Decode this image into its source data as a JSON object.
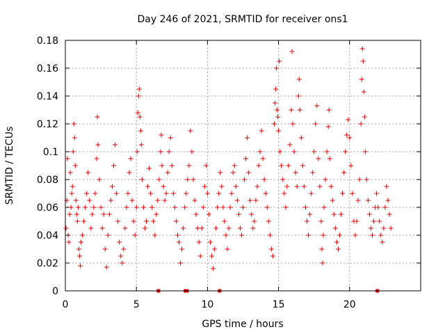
{
  "chart_data": {
    "type": "scatter",
    "title": "Day 246 of 2021, SRMTID for receiver ons1",
    "xlabel": "GPS time / hours",
    "ylabel": "SRMTID / TECUs",
    "xlim": [
      0,
      25
    ],
    "ylim": [
      0,
      0.18
    ],
    "x_ticks": [
      0,
      5,
      10,
      15,
      20
    ],
    "x_tick_labels": [
      "0",
      "5",
      "10",
      "15",
      "20"
    ],
    "y_ticks": [
      0,
      0.02,
      0.04,
      0.06,
      0.08,
      0.1,
      0.12,
      0.14,
      0.16,
      0.18
    ],
    "y_tick_labels": [
      "0",
      "0.02",
      "0.04",
      "0.06",
      "0.08",
      "0.1",
      "0.12",
      "0.14",
      "0.16",
      "0.18"
    ],
    "grid": true,
    "marker": "+",
    "color": "#e00000",
    "series": [
      {
        "name": "SRMTID",
        "points": [
          [
            0.05,
            0.045
          ],
          [
            0.1,
            0.065
          ],
          [
            0.15,
            0.095
          ],
          [
            0.2,
            0.04
          ],
          [
            0.25,
            0.035
          ],
          [
            0.3,
            0.055
          ],
          [
            0.35,
            0.085
          ],
          [
            0.4,
            0.06
          ],
          [
            0.45,
            0.07
          ],
          [
            0.5,
            0.075
          ],
          [
            0.55,
            0.1
          ],
          [
            0.6,
            0.12
          ],
          [
            0.65,
            0.11
          ],
          [
            0.7,
            0.09
          ],
          [
            0.75,
            0.065
          ],
          [
            0.8,
            0.055
          ],
          [
            0.85,
            0.05
          ],
          [
            0.9,
            0.06
          ],
          [
            0.95,
            0.03
          ],
          [
            1.0,
            0.025
          ],
          [
            1.05,
            0.018
          ],
          [
            1.1,
            0.035
          ],
          [
            1.2,
            0.04
          ],
          [
            1.3,
            0.05
          ],
          [
            1.4,
            0.06
          ],
          [
            1.5,
            0.07
          ],
          [
            1.6,
            0.085
          ],
          [
            1.7,
            0.065
          ],
          [
            1.8,
            0.045
          ],
          [
            1.9,
            0.055
          ],
          [
            2.0,
            0.06
          ],
          [
            2.1,
            0.07
          ],
          [
            2.2,
            0.095
          ],
          [
            2.25,
            0.125
          ],
          [
            2.3,
            0.105
          ],
          [
            2.4,
            0.08
          ],
          [
            2.5,
            0.06
          ],
          [
            2.6,
            0.045
          ],
          [
            2.7,
            0.055
          ],
          [
            2.8,
            0.03
          ],
          [
            2.9,
            0.017
          ],
          [
            3.0,
            0.04
          ],
          [
            3.1,
            0.055
          ],
          [
            3.2,
            0.065
          ],
          [
            3.3,
            0.075
          ],
          [
            3.4,
            0.09
          ],
          [
            3.5,
            0.105
          ],
          [
            3.6,
            0.07
          ],
          [
            3.7,
            0.05
          ],
          [
            3.8,
            0.035
          ],
          [
            3.9,
            0.025
          ],
          [
            4.0,
            0.02
          ],
          [
            4.1,
            0.03
          ],
          [
            4.2,
            0.045
          ],
          [
            4.3,
            0.06
          ],
          [
            4.4,
            0.07
          ],
          [
            4.5,
            0.085
          ],
          [
            4.6,
            0.095
          ],
          [
            4.7,
            0.065
          ],
          [
            4.8,
            0.05
          ],
          [
            4.9,
            0.04
          ],
          [
            5.0,
            0.06
          ],
          [
            5.05,
            0.1
          ],
          [
            5.1,
            0.128
          ],
          [
            5.15,
            0.14
          ],
          [
            5.2,
            0.145
          ],
          [
            5.25,
            0.125
          ],
          [
            5.3,
            0.115
          ],
          [
            5.35,
            0.105
          ],
          [
            5.4,
            0.08
          ],
          [
            5.5,
            0.06
          ],
          [
            5.6,
            0.045
          ],
          [
            5.7,
            0.05
          ],
          [
            5.8,
            0.075
          ],
          [
            5.9,
            0.088
          ],
          [
            6.0,
            0.07
          ],
          [
            6.1,
            0.06
          ],
          [
            6.2,
            0.05
          ],
          [
            6.3,
            0.04
          ],
          [
            6.4,
            0.055
          ],
          [
            6.5,
            0.065
          ],
          [
            6.6,
            0.08
          ],
          [
            6.7,
            0.1
          ],
          [
            6.75,
            0.112
          ],
          [
            6.8,
            0.09
          ],
          [
            6.9,
            0.075
          ],
          [
            7.0,
            0.065
          ],
          [
            7.1,
            0.07
          ],
          [
            7.2,
            0.085
          ],
          [
            7.3,
            0.1
          ],
          [
            7.4,
            0.11
          ],
          [
            7.5,
            0.09
          ],
          [
            7.6,
            0.07
          ],
          [
            7.7,
            0.06
          ],
          [
            7.8,
            0.05
          ],
          [
            7.9,
            0.04
          ],
          [
            8.0,
            0.035
          ],
          [
            8.1,
            0.02
          ],
          [
            8.2,
            0.03
          ],
          [
            8.3,
            0.045
          ],
          [
            8.4,
            0.06
          ],
          [
            8.5,
            0.07
          ],
          [
            8.6,
            0.08
          ],
          [
            8.7,
            0.09
          ],
          [
            8.8,
            0.115
          ],
          [
            8.9,
            0.1
          ],
          [
            9.0,
            0.08
          ],
          [
            9.1,
            0.065
          ],
          [
            9.2,
            0.055
          ],
          [
            9.3,
            0.045
          ],
          [
            9.4,
            0.035
          ],
          [
            9.5,
            0.025
          ],
          [
            9.6,
            0.045
          ],
          [
            9.7,
            0.06
          ],
          [
            9.8,
            0.075
          ],
          [
            9.9,
            0.09
          ],
          [
            10.0,
            0.07
          ],
          [
            10.1,
            0.055
          ],
          [
            10.2,
            0.035
          ],
          [
            10.3,
            0.025
          ],
          [
            10.4,
            0.016
          ],
          [
            10.5,
            0.03
          ],
          [
            10.6,
            0.045
          ],
          [
            10.7,
            0.06
          ],
          [
            10.8,
            0.07
          ],
          [
            10.9,
            0.085
          ],
          [
            11.0,
            0.075
          ],
          [
            11.1,
            0.06
          ],
          [
            11.2,
            0.05
          ],
          [
            11.3,
            0.04
          ],
          [
            11.4,
            0.03
          ],
          [
            11.5,
            0.045
          ],
          [
            11.6,
            0.06
          ],
          [
            11.7,
            0.07
          ],
          [
            11.8,
            0.085
          ],
          [
            11.9,
            0.09
          ],
          [
            12.0,
            0.075
          ],
          [
            12.1,
            0.065
          ],
          [
            12.2,
            0.055
          ],
          [
            12.3,
            0.045
          ],
          [
            12.4,
            0.04
          ],
          [
            12.5,
            0.06
          ],
          [
            12.6,
            0.08
          ],
          [
            12.7,
            0.095
          ],
          [
            12.8,
            0.11
          ],
          [
            12.9,
            0.085
          ],
          [
            13.0,
            0.065
          ],
          [
            13.1,
            0.055
          ],
          [
            13.2,
            0.045
          ],
          [
            13.3,
            0.05
          ],
          [
            13.4,
            0.065
          ],
          [
            13.5,
            0.075
          ],
          [
            13.6,
            0.09
          ],
          [
            13.7,
            0.1
          ],
          [
            13.8,
            0.115
          ],
          [
            13.9,
            0.095
          ],
          [
            14.0,
            0.08
          ],
          [
            14.1,
            0.07
          ],
          [
            14.2,
            0.06
          ],
          [
            14.3,
            0.05
          ],
          [
            14.4,
            0.04
          ],
          [
            14.5,
            0.03
          ],
          [
            14.6,
            0.025
          ],
          [
            14.7,
            0.12
          ],
          [
            14.75,
            0.135
          ],
          [
            14.8,
            0.145
          ],
          [
            14.85,
            0.16
          ],
          [
            14.9,
            0.13
          ],
          [
            14.95,
            0.125
          ],
          [
            15.0,
            0.115
          ],
          [
            15.05,
            0.165
          ],
          [
            15.1,
            0.1
          ],
          [
            15.2,
            0.09
          ],
          [
            15.3,
            0.08
          ],
          [
            15.4,
            0.07
          ],
          [
            15.5,
            0.06
          ],
          [
            15.6,
            0.075
          ],
          [
            15.7,
            0.09
          ],
          [
            15.8,
            0.105
          ],
          [
            15.9,
            0.13
          ],
          [
            15.95,
            0.172
          ],
          [
            16.0,
            0.12
          ],
          [
            16.1,
            0.1
          ],
          [
            16.2,
            0.085
          ],
          [
            16.3,
            0.075
          ],
          [
            16.4,
            0.14
          ],
          [
            16.45,
            0.152
          ],
          [
            16.5,
            0.13
          ],
          [
            16.6,
            0.11
          ],
          [
            16.7,
            0.09
          ],
          [
            16.8,
            0.075
          ],
          [
            16.9,
            0.06
          ],
          [
            17.0,
            0.05
          ],
          [
            17.1,
            0.04
          ],
          [
            17.2,
            0.055
          ],
          [
            17.3,
            0.07
          ],
          [
            17.4,
            0.085
          ],
          [
            17.5,
            0.1
          ],
          [
            17.6,
            0.12
          ],
          [
            17.7,
            0.133
          ],
          [
            17.8,
            0.095
          ],
          [
            17.9,
            0.075
          ],
          [
            18.0,
            0.05
          ],
          [
            18.05,
            0.03
          ],
          [
            18.1,
            0.02
          ],
          [
            18.15,
            0.04
          ],
          [
            18.2,
            0.06
          ],
          [
            18.3,
            0.08
          ],
          [
            18.4,
            0.1
          ],
          [
            18.5,
            0.118
          ],
          [
            18.55,
            0.13
          ],
          [
            18.6,
            0.095
          ],
          [
            18.7,
            0.075
          ],
          [
            18.8,
            0.065
          ],
          [
            18.9,
            0.055
          ],
          [
            19.0,
            0.045
          ],
          [
            19.1,
            0.035
          ],
          [
            19.2,
            0.03
          ],
          [
            19.3,
            0.04
          ],
          [
            19.4,
            0.055
          ],
          [
            19.5,
            0.07
          ],
          [
            19.6,
            0.085
          ],
          [
            19.7,
            0.1
          ],
          [
            19.8,
            0.112
          ],
          [
            19.9,
            0.123
          ],
          [
            20.0,
            0.11
          ],
          [
            20.1,
            0.09
          ],
          [
            20.2,
            0.07
          ],
          [
            20.3,
            0.05
          ],
          [
            20.4,
            0.04
          ],
          [
            20.5,
            0.05
          ],
          [
            20.6,
            0.065
          ],
          [
            20.7,
            0.08
          ],
          [
            20.8,
            0.12
          ],
          [
            20.85,
            0.152
          ],
          [
            20.9,
            0.174
          ],
          [
            20.95,
            0.165
          ],
          [
            21.0,
            0.143
          ],
          [
            21.05,
            0.125
          ],
          [
            21.1,
            0.1
          ],
          [
            21.2,
            0.08
          ],
          [
            21.3,
            0.065
          ],
          [
            21.4,
            0.055
          ],
          [
            21.5,
            0.045
          ],
          [
            21.6,
            0.04
          ],
          [
            21.7,
            0.05
          ],
          [
            21.8,
            0.06
          ],
          [
            21.9,
            0.07
          ],
          [
            22.0,
            0.06
          ],
          [
            22.1,
            0.05
          ],
          [
            22.2,
            0.04
          ],
          [
            22.3,
            0.035
          ],
          [
            22.4,
            0.045
          ],
          [
            22.5,
            0.06
          ],
          [
            22.6,
            0.075
          ],
          [
            22.7,
            0.065
          ],
          [
            22.8,
            0.055
          ],
          [
            22.9,
            0.045
          ]
        ]
      }
    ],
    "zero_markers_x": [
      6.55,
      8.45,
      8.55,
      10.85,
      21.95
    ]
  }
}
